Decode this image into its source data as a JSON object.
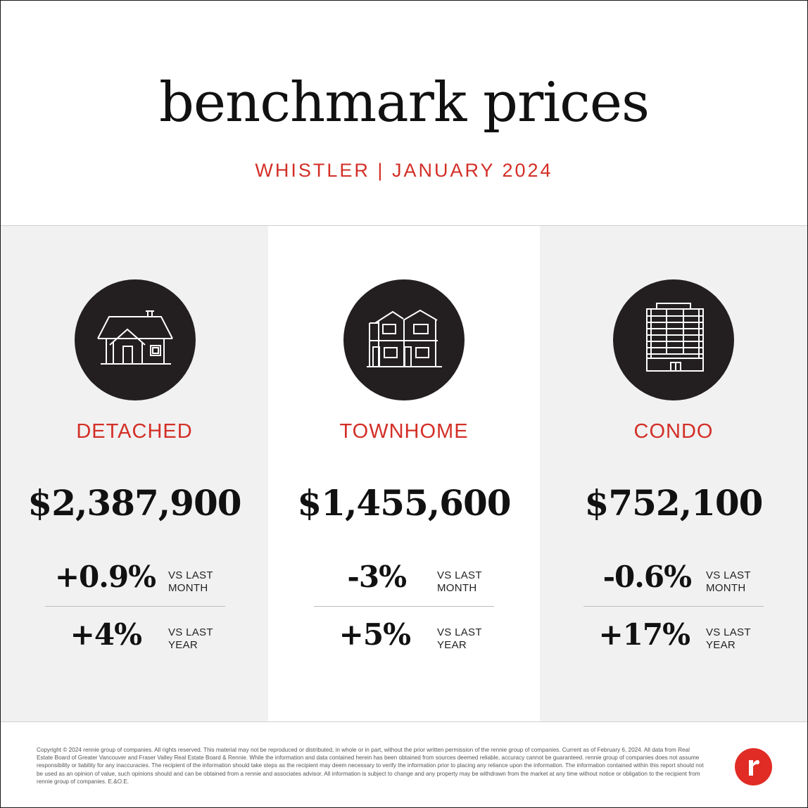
{
  "header": {
    "title": "benchmark prices",
    "subtitle": "WHISTLER | JANUARY 2024"
  },
  "panels": [
    {
      "type": "DETACHED",
      "icon": "house-icon",
      "price": "$2,387,900",
      "month_change": "+0.9%",
      "month_label_1": "VS LAST",
      "month_label_2": "MONTH",
      "year_change": "+4%",
      "year_label_1": "VS LAST",
      "year_label_2": "YEAR"
    },
    {
      "type": "TOWNHOME",
      "icon": "townhome-icon",
      "price": "$1,455,600",
      "month_change": "-3%",
      "month_label_1": "VS LAST",
      "month_label_2": "MONTH",
      "year_change": "+5%",
      "year_label_1": "VS LAST",
      "year_label_2": "YEAR"
    },
    {
      "type": "CONDO",
      "icon": "condo-building-icon",
      "price": "$752,100",
      "month_change": "-0.6%",
      "month_label_1": "VS LAST",
      "month_label_2": "MONTH",
      "year_change": "+17%",
      "year_label_1": "VS LAST",
      "year_label_2": "YEAR"
    }
  ],
  "footer": {
    "disclaimer": "Copyright © 2024 rennie group of companies. All rights reserved. This material may not be reproduced or distributed, in whole or in part, without the prior written permission of the rennie group of companies. Current as of February 6, 2024. All data from Real Estate Board of Greater Vancouver and Fraser Valley Real Estate Board & Rennie. While the information and data contained herein has been obtained from sources deemed reliable, accuracy cannot be guaranteed. rennie group of companies does not assume responsibility or liability for any inaccuracies. The recipient of the information should take steps as the recipient may deem necessary to verify the information prior to placing any reliance upon the information. The information contained within this report should not be used as an opinion of value, such opinions should and can be obtained from a rennie and associates advisor. All information is subject to change and any property may be withdrawn from the market at any time without notice or obligation to the recipient from rennie group of companies. E.&O.E.",
    "logo": "rennie-logo-icon"
  },
  "colors": {
    "accent": "#d32f27",
    "icon_bg": "#231f20",
    "panel_grey": "#f1f1f1",
    "logo_red": "#e12c25"
  }
}
